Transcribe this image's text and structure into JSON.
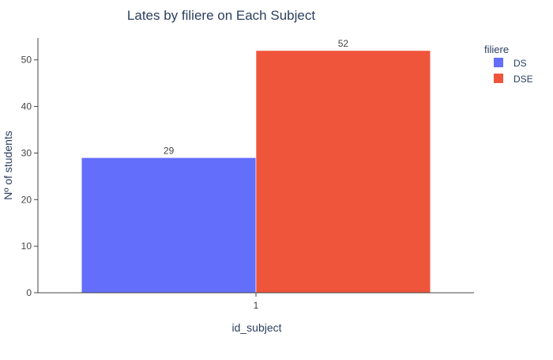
{
  "chart_data": {
    "type": "bar",
    "title": "Lates by filiere on Each Subject",
    "xlabel": "id_subject",
    "ylabel": "Nº of students",
    "categories": [
      "1"
    ],
    "ylim": [
      0,
      54.7
    ],
    "yticks": [
      0,
      10,
      20,
      30,
      40,
      50
    ],
    "grid": false,
    "barmode": "group",
    "legend": {
      "title": "filiere",
      "placement": "top-right"
    },
    "series": [
      {
        "name": "DS",
        "color": "#636efa",
        "values": [
          29
        ],
        "labels": [
          "29"
        ]
      },
      {
        "name": "DSE",
        "color": "#ef553b",
        "values": [
          52
        ],
        "labels": [
          "52"
        ]
      }
    ]
  }
}
